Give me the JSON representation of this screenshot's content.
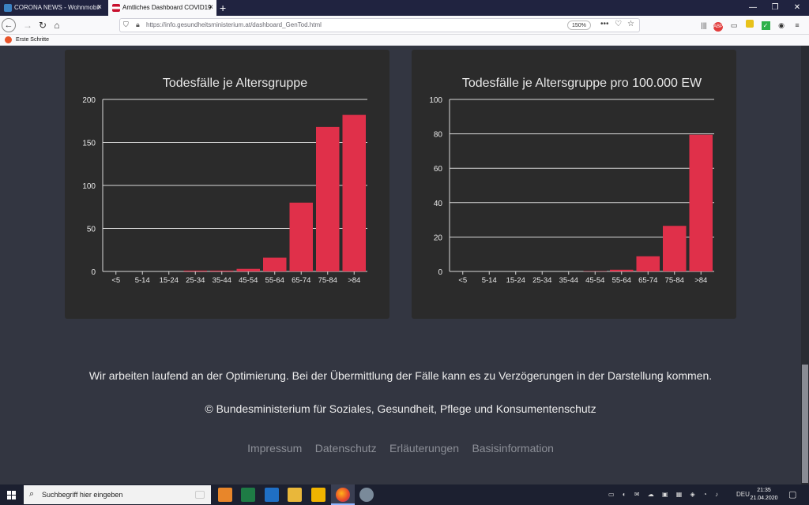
{
  "browser": {
    "tabs": [
      {
        "title": "CORONA NEWS - Wohnmobil",
        "color": "#3b82c4"
      },
      {
        "title": "Amtliches Dashboard COVID19",
        "color": "#c8102e"
      }
    ],
    "close_glyph": "×",
    "new_tab_glyph": "+",
    "url": "https://info.gesundheitsministerium.at/dashboard_GenTod.html",
    "zoom": "150%",
    "bookmark": "Erste Schritte"
  },
  "charts": {
    "deaths_title": "Todesfälle je Altersgruppe",
    "deaths_per100k_title": "Todesfälle je Altersgruppe pro 100.000 EW"
  },
  "chart_data": [
    {
      "type": "bar",
      "title": "Todesfälle je Altersgruppe",
      "categories": [
        "<5",
        "5-14",
        "15-24",
        "25-34",
        "35-44",
        "45-54",
        "55-64",
        "65-74",
        "75-84",
        ">84"
      ],
      "values": [
        0,
        0,
        0,
        1,
        1,
        3,
        16,
        80,
        168,
        182
      ],
      "yticks": [
        0,
        50,
        100,
        150,
        200
      ],
      "ylim": [
        0,
        200
      ],
      "grid": true,
      "bar_color": "#e0304a"
    },
    {
      "type": "bar",
      "title": "Todesfälle je Altersgruppe pro 100.000 EW",
      "categories": [
        "<5",
        "5-14",
        "15-24",
        "25-34",
        "35-44",
        "45-54",
        "55-64",
        "65-74",
        "75-84",
        ">84"
      ],
      "values": [
        0,
        0,
        0,
        0,
        0,
        0.2,
        1.0,
        8.8,
        26.5,
        79.5
      ],
      "yticks": [
        0,
        20,
        40,
        60,
        80,
        100
      ],
      "ylim": [
        0,
        100
      ],
      "grid": true,
      "bar_color": "#e0304a"
    }
  ],
  "footer": {
    "notice": "Wir arbeiten laufend an der Optimierung. Bei der Übermittlung der Fälle kann es zu Verzögerungen in der Darstellung kommen.",
    "copyright": "© Bundesministerium für Soziales, Gesundheit, Pflege und Konsumentenschutz",
    "links": [
      "Impressum",
      "Datenschutz",
      "Erläuterungen",
      "Basisinformation"
    ]
  },
  "taskbar": {
    "search_placeholder": "Suchbegriff hier eingeben",
    "language": "DEU",
    "time": "21:35",
    "date": "21.04.2020"
  }
}
